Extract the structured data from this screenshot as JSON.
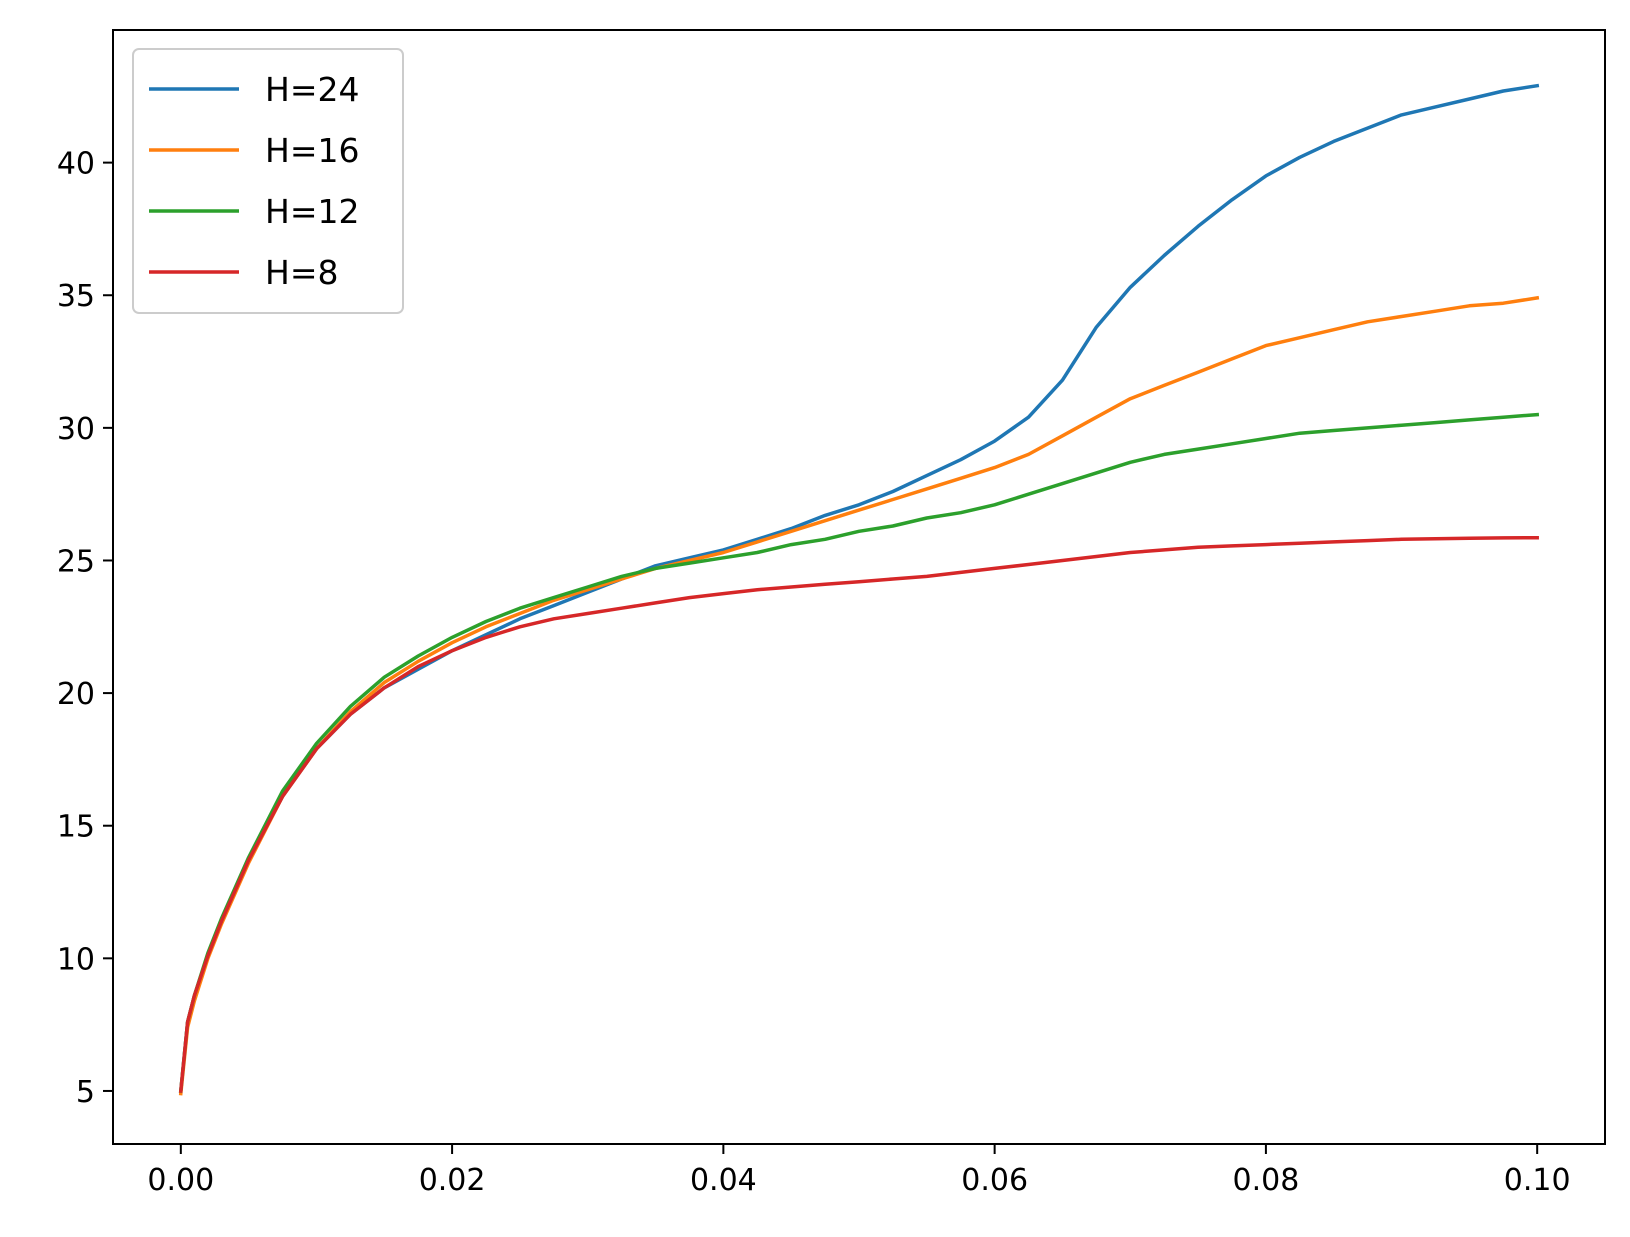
{
  "chart_data": {
    "type": "line",
    "title": "",
    "xlabel": "",
    "ylabel": "",
    "xlim": [
      -0.005,
      0.105
    ],
    "ylim": [
      3,
      45
    ],
    "grid": false,
    "legend_position": "top-left",
    "xticks": [
      0.0,
      0.02,
      0.04,
      0.06,
      0.08,
      0.1
    ],
    "xtick_labels": [
      "0.00",
      "0.02",
      "0.04",
      "0.06",
      "0.08",
      "0.10"
    ],
    "yticks": [
      5,
      10,
      15,
      20,
      25,
      30,
      35,
      40
    ],
    "ytick_labels": [
      "5",
      "10",
      "15",
      "20",
      "25",
      "30",
      "35",
      "40"
    ],
    "series": [
      {
        "name": "H=24",
        "color": "#1f77b4",
        "x": [
          0,
          0.0005,
          0.001,
          0.002,
          0.003,
          0.005,
          0.0075,
          0.01,
          0.0125,
          0.015,
          0.0175,
          0.02,
          0.0225,
          0.025,
          0.0275,
          0.03,
          0.0325,
          0.035,
          0.0375,
          0.04,
          0.0425,
          0.045,
          0.0475,
          0.05,
          0.0525,
          0.055,
          0.0575,
          0.06,
          0.0625,
          0.065,
          0.0675,
          0.07,
          0.0725,
          0.075,
          0.0775,
          0.08,
          0.0825,
          0.085,
          0.0875,
          0.09,
          0.0925,
          0.095,
          0.0975,
          0.1
        ],
        "y": [
          5.0,
          7.6,
          8.6,
          10.1,
          11.4,
          13.7,
          16.1,
          17.9,
          19.2,
          20.2,
          20.9,
          21.6,
          22.2,
          22.8,
          23.3,
          23.8,
          24.3,
          24.8,
          25.1,
          25.4,
          25.8,
          26.2,
          26.7,
          27.1,
          27.6,
          28.2,
          28.8,
          29.5,
          30.4,
          31.8,
          33.8,
          35.3,
          36.5,
          37.6,
          38.6,
          39.5,
          40.2,
          40.8,
          41.3,
          41.8,
          42.1,
          42.4,
          42.7,
          42.9
        ]
      },
      {
        "name": "H=16",
        "color": "#ff7f0e",
        "x": [
          0,
          0.0005,
          0.001,
          0.002,
          0.003,
          0.005,
          0.0075,
          0.01,
          0.0125,
          0.015,
          0.0175,
          0.02,
          0.0225,
          0.025,
          0.0275,
          0.03,
          0.0325,
          0.035,
          0.0375,
          0.04,
          0.0425,
          0.045,
          0.0475,
          0.05,
          0.0525,
          0.055,
          0.0575,
          0.06,
          0.0625,
          0.065,
          0.0675,
          0.07,
          0.0725,
          0.075,
          0.0775,
          0.08,
          0.0825,
          0.085,
          0.0875,
          0.09,
          0.0925,
          0.095,
          0.0975,
          0.1
        ],
        "y": [
          4.9,
          7.4,
          8.4,
          10.0,
          11.3,
          13.6,
          16.1,
          17.9,
          19.3,
          20.4,
          21.2,
          21.9,
          22.5,
          23.0,
          23.5,
          23.9,
          24.3,
          24.7,
          25.0,
          25.3,
          25.7,
          26.1,
          26.5,
          26.9,
          27.3,
          27.7,
          28.1,
          28.5,
          29.0,
          29.7,
          30.4,
          31.1,
          31.6,
          32.1,
          32.6,
          33.1,
          33.4,
          33.7,
          34.0,
          34.2,
          34.4,
          34.6,
          34.7,
          34.9
        ]
      },
      {
        "name": "H=12",
        "color": "#2ca02c",
        "x": [
          0,
          0.0005,
          0.001,
          0.002,
          0.003,
          0.005,
          0.0075,
          0.01,
          0.0125,
          0.015,
          0.0175,
          0.02,
          0.0225,
          0.025,
          0.0275,
          0.03,
          0.0325,
          0.035,
          0.0375,
          0.04,
          0.0425,
          0.045,
          0.0475,
          0.05,
          0.0525,
          0.055,
          0.0575,
          0.06,
          0.0625,
          0.065,
          0.0675,
          0.07,
          0.0725,
          0.075,
          0.0775,
          0.08,
          0.0825,
          0.085,
          0.0875,
          0.09,
          0.0925,
          0.095,
          0.0975,
          0.1
        ],
        "y": [
          5.0,
          7.6,
          8.6,
          10.2,
          11.5,
          13.8,
          16.3,
          18.1,
          19.5,
          20.6,
          21.4,
          22.1,
          22.7,
          23.2,
          23.6,
          24.0,
          24.4,
          24.7,
          24.9,
          25.1,
          25.3,
          25.6,
          25.8,
          26.1,
          26.3,
          26.6,
          26.8,
          27.1,
          27.5,
          27.9,
          28.3,
          28.7,
          29.0,
          29.2,
          29.4,
          29.6,
          29.8,
          29.9,
          30.0,
          30.1,
          30.2,
          30.3,
          30.4,
          30.5
        ]
      },
      {
        "name": "H=8",
        "color": "#d62728",
        "x": [
          0,
          0.0005,
          0.001,
          0.002,
          0.003,
          0.005,
          0.0075,
          0.01,
          0.0125,
          0.015,
          0.0175,
          0.02,
          0.0225,
          0.025,
          0.0275,
          0.03,
          0.0325,
          0.035,
          0.0375,
          0.04,
          0.0425,
          0.045,
          0.0475,
          0.05,
          0.0525,
          0.055,
          0.0575,
          0.06,
          0.0625,
          0.065,
          0.0675,
          0.07,
          0.0725,
          0.075,
          0.0775,
          0.08,
          0.0825,
          0.085,
          0.0875,
          0.09,
          0.0925,
          0.095,
          0.0975,
          0.1
        ],
        "y": [
          5.0,
          7.6,
          8.6,
          10.1,
          11.4,
          13.7,
          16.1,
          17.9,
          19.2,
          20.2,
          21.0,
          21.6,
          22.1,
          22.5,
          22.8,
          23.0,
          23.2,
          23.4,
          23.6,
          23.75,
          23.9,
          24.0,
          24.1,
          24.2,
          24.3,
          24.4,
          24.55,
          24.7,
          24.85,
          25.0,
          25.15,
          25.3,
          25.4,
          25.5,
          25.55,
          25.6,
          25.65,
          25.7,
          25.75,
          25.8,
          25.82,
          25.84,
          25.85,
          25.86
        ]
      }
    ]
  }
}
